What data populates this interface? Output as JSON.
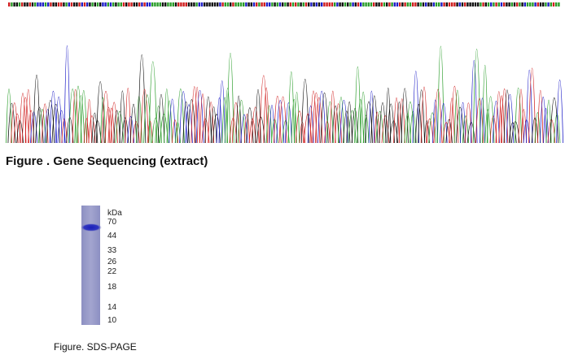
{
  "sequencing_figure": {
    "caption": "Figure . Gene Sequencing (extract)"
  },
  "sds_page_figure": {
    "unit": "kDa",
    "markers": [
      70,
      44,
      33,
      26,
      22,
      18,
      14,
      10
    ],
    "caption": "Figure. SDS-PAGE"
  }
}
